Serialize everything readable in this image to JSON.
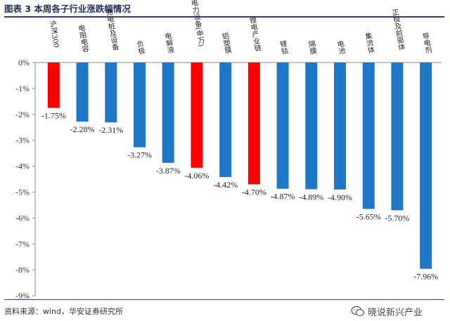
{
  "title": "图表 3 本周各子行业涨跌幅情况",
  "source": "资料来源：wind，华安证券研究所",
  "watermark": "晓说新兴产业",
  "colors": {
    "positive_highlight": "#ff0000",
    "default": "#1f77c8",
    "axis": "#888888",
    "title_rule": "#2e3f7a"
  },
  "chart_data": {
    "type": "bar",
    "title": "",
    "xlabel": "",
    "ylabel": "",
    "ylim": [
      -9,
      0
    ],
    "y_ticks": [
      "0%",
      "-1%",
      "-2%",
      "-3%",
      "-4%",
      "-5%",
      "-6%",
      "-7%",
      "-8%",
      "-9%"
    ],
    "y_tick_values": [
      0,
      -1,
      -2,
      -3,
      -4,
      -5,
      -6,
      -7,
      -8,
      -9
    ],
    "grid": false,
    "categories": [
      "沪深300",
      "电阻电容",
      "充电桩及设备",
      "负极",
      "电解液",
      "电力设备(申万)",
      "铝塑膜",
      "锂电产业链",
      "锂钴",
      "隔膜",
      "电池",
      "集流体",
      "正极及前驱体",
      "导电剂"
    ],
    "values": [
      -1.75,
      -2.28,
      -2.31,
      -3.27,
      -3.87,
      -4.06,
      -4.42,
      -4.7,
      -4.87,
      -4.89,
      -4.9,
      -5.65,
      -5.7,
      -7.96
    ],
    "value_labels": [
      "-1.75%",
      "-2.28%",
      "-2.31%",
      "-3.27%",
      "-3.87%",
      "-4.06%",
      "-4.42%",
      "-4.70%",
      "-4.87%",
      "-4.89%",
      "-4.90%",
      "-5.65%",
      "-5.70%",
      "-7.96%"
    ],
    "bar_colors": [
      "red",
      "blue",
      "blue",
      "blue",
      "blue",
      "red",
      "blue",
      "red",
      "blue",
      "blue",
      "blue",
      "blue",
      "blue",
      "blue"
    ]
  }
}
